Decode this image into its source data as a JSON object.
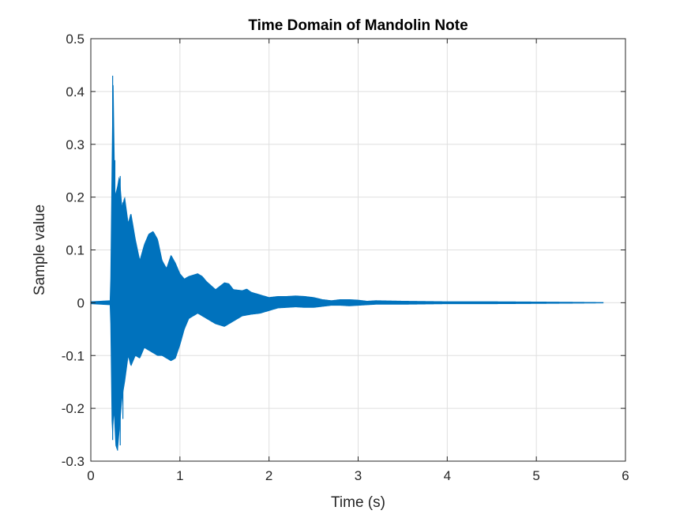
{
  "chart_data": {
    "type": "line",
    "title": "Time Domain of Mandolin Note",
    "xlabel": "Time (s)",
    "ylabel": "Sample value",
    "xlim": [
      0,
      6
    ],
    "ylim": [
      -0.3,
      0.5
    ],
    "xticks": [
      "0",
      "1",
      "2",
      "3",
      "4",
      "5",
      "6"
    ],
    "yticks": [
      "-0.3",
      "-0.2",
      "-0.1",
      "0",
      "0.1",
      "0.2",
      "0.3",
      "0.4",
      "0.5"
    ],
    "grid": true,
    "series_color": "#0072BD",
    "upper_envelope": {
      "x": [
        0.0,
        0.22,
        0.24,
        0.25,
        0.27,
        0.3,
        0.32,
        0.35,
        0.38,
        0.42,
        0.45,
        0.5,
        0.55,
        0.6,
        0.65,
        0.7,
        0.75,
        0.8,
        0.85,
        0.9,
        0.95,
        1.0,
        1.05,
        1.1,
        1.2,
        1.25,
        1.3,
        1.4,
        1.5,
        1.55,
        1.6,
        1.7,
        1.75,
        1.8,
        1.9,
        2.0,
        2.1,
        2.2,
        2.3,
        2.4,
        2.5,
        2.6,
        2.7,
        2.8,
        2.9,
        3.0,
        3.1,
        3.2,
        3.5,
        4.0,
        4.5,
        5.0,
        5.4,
        5.75
      ],
      "y": [
        0.002,
        0.004,
        0.3,
        0.43,
        0.2,
        0.22,
        0.24,
        0.18,
        0.2,
        0.15,
        0.17,
        0.12,
        0.08,
        0.11,
        0.13,
        0.135,
        0.12,
        0.08,
        0.065,
        0.09,
        0.075,
        0.055,
        0.045,
        0.05,
        0.055,
        0.05,
        0.04,
        0.025,
        0.038,
        0.036,
        0.025,
        0.023,
        0.026,
        0.02,
        0.015,
        0.01,
        0.012,
        0.012,
        0.013,
        0.012,
        0.01,
        0.006,
        0.004,
        0.006,
        0.006,
        0.005,
        0.003,
        0.004,
        0.003,
        0.002,
        0.002,
        0.0015,
        0.001,
        0.0005
      ]
    },
    "lower_envelope": {
      "x": [
        0.0,
        0.22,
        0.24,
        0.26,
        0.28,
        0.3,
        0.32,
        0.35,
        0.38,
        0.42,
        0.45,
        0.5,
        0.55,
        0.6,
        0.65,
        0.7,
        0.75,
        0.8,
        0.85,
        0.9,
        0.95,
        1.0,
        1.05,
        1.1,
        1.15,
        1.2,
        1.3,
        1.4,
        1.5,
        1.6,
        1.7,
        1.8,
        1.9,
        2.0,
        2.1,
        2.2,
        2.3,
        2.4,
        2.5,
        2.6,
        2.7,
        2.8,
        2.9,
        3.0,
        3.1,
        3.2,
        3.5,
        4.0,
        4.5,
        5.0,
        5.4,
        5.75
      ],
      "y": [
        -0.002,
        -0.004,
        -0.26,
        -0.2,
        -0.27,
        -0.28,
        -0.24,
        -0.18,
        -0.15,
        -0.1,
        -0.12,
        -0.1,
        -0.105,
        -0.085,
        -0.09,
        -0.095,
        -0.1,
        -0.1,
        -0.105,
        -0.11,
        -0.105,
        -0.08,
        -0.05,
        -0.03,
        -0.025,
        -0.02,
        -0.03,
        -0.04,
        -0.045,
        -0.035,
        -0.025,
        -0.022,
        -0.02,
        -0.015,
        -0.01,
        -0.009,
        -0.008,
        -0.009,
        -0.009,
        -0.007,
        -0.005,
        -0.005,
        -0.006,
        -0.005,
        -0.004,
        -0.003,
        -0.003,
        -0.002,
        -0.002,
        -0.0015,
        -0.001,
        -0.0005
      ]
    }
  }
}
